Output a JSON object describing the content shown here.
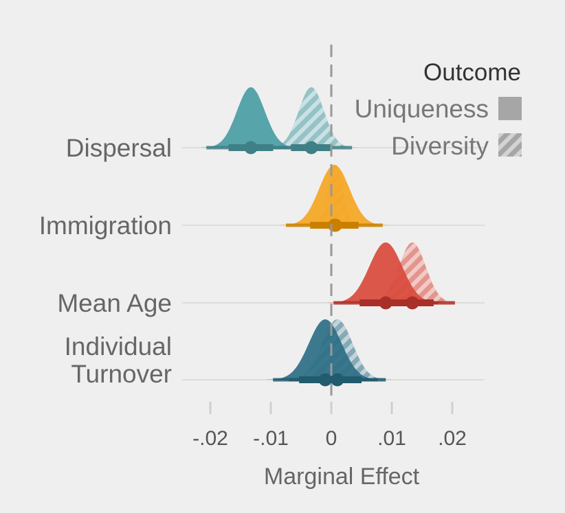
{
  "chart_data": {
    "type": "ridge",
    "title": "",
    "xlabel": "Marginal Effect",
    "ylabel": "",
    "xlim": [
      -0.025,
      0.025
    ],
    "xticks": [
      -0.02,
      -0.01,
      0,
      0.01,
      0.02
    ],
    "xtick_labels": [
      "-.02",
      "-.01",
      "0",
      ".01",
      ".02"
    ],
    "reference_line": 0,
    "grid": false,
    "legend": {
      "title": "Outcome",
      "position": "top-right",
      "entries": [
        {
          "label": "Uniqueness",
          "style": "solid"
        },
        {
          "label": "Diversity",
          "style": "hatched"
        }
      ]
    },
    "categories": [
      {
        "label": "Dispersal",
        "color": "#4a9da4",
        "point_color": "#3f7f86",
        "Uniqueness": {
          "median": -0.0133,
          "sd": 0.0023
        },
        "Diversity": {
          "median": -0.0033,
          "sd": 0.0021
        }
      },
      {
        "label": "Immigration",
        "color": "#f5a623",
        "point_color": "#c98000",
        "Uniqueness": {
          "median": 0.0005,
          "sd": 0.0025
        },
        "Diversity": {
          "median": 0.0007,
          "sd": 0.0012
        }
      },
      {
        "label": "Mean Age",
        "color": "#d94a3c",
        "point_color": "#a83028",
        "Uniqueness": {
          "median": 0.009,
          "sd": 0.0027
        },
        "Diversity": {
          "median": 0.0134,
          "sd": 0.0022
        }
      },
      {
        "label": "Individual Turnover",
        "label_lines": [
          "Individual",
          "Turnover"
        ],
        "color": "#2e6f86",
        "point_color": "#225a6e",
        "Uniqueness": {
          "median": -0.001,
          "sd": 0.0027
        },
        "Diversity": {
          "median": 0.001,
          "sd": 0.0025
        }
      }
    ]
  }
}
